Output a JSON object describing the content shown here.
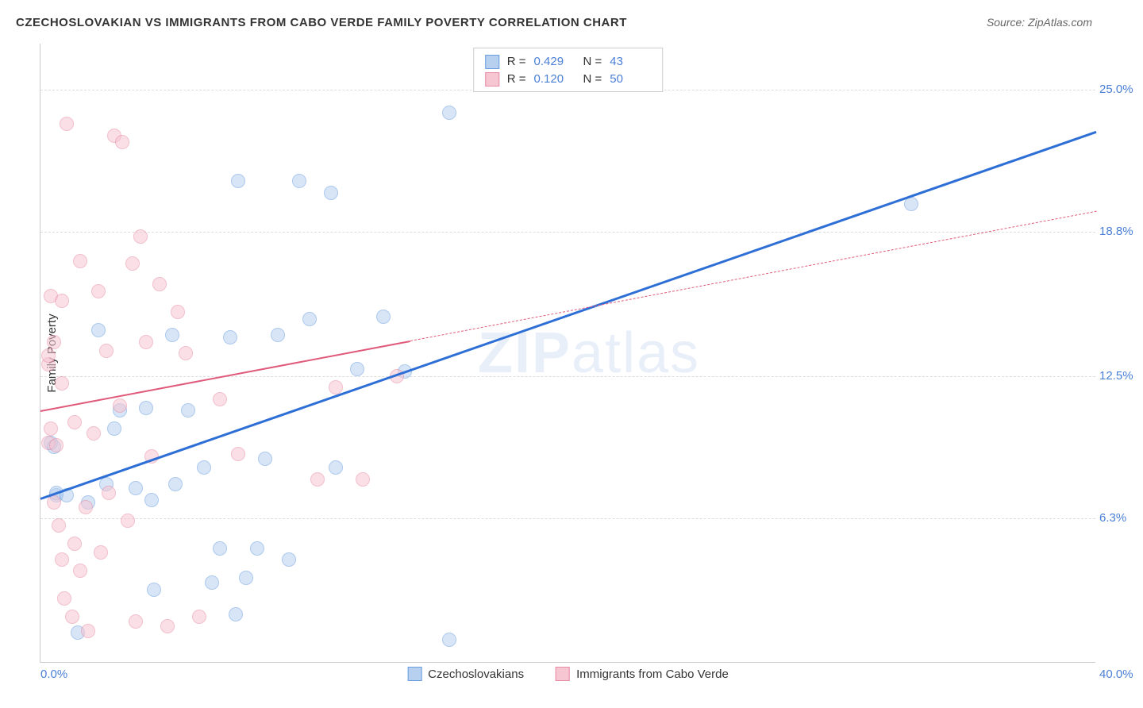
{
  "title": "CZECHOSLOVAKIAN VS IMMIGRANTS FROM CABO VERDE FAMILY POVERTY CORRELATION CHART",
  "source": "Source: ZipAtlas.com",
  "watermark": "ZIPatlas",
  "chart": {
    "type": "scatter",
    "ylabel": "Family Poverty",
    "xlim": [
      0,
      40
    ],
    "ylim": [
      0,
      27
    ],
    "x_ticks": [
      {
        "v": 0,
        "label": "0.0%"
      },
      {
        "v": 40,
        "label": "40.0%"
      }
    ],
    "y_ticks": [
      {
        "v": 6.3,
        "label": "6.3%"
      },
      {
        "v": 12.5,
        "label": "12.5%"
      },
      {
        "v": 18.8,
        "label": "18.8%"
      },
      {
        "v": 25.0,
        "label": "25.0%"
      }
    ],
    "background_color": "#ffffff",
    "grid_color": "#dddddd",
    "series": [
      {
        "name": "Czechoslovakians",
        "color_fill": "#b8d0f0",
        "color_stroke": "#6a9de0",
        "marker_radius": 9,
        "fill_opacity": 0.55,
        "R": "0.429",
        "N": "43",
        "trend": {
          "x1": 0,
          "y1": 7.2,
          "x2": 40,
          "y2": 23.2,
          "color": "#2e6fd6",
          "width": 2.5,
          "solid_until_x": 40
        },
        "points": [
          [
            0.4,
            9.6
          ],
          [
            0.5,
            9.4
          ],
          [
            0.6,
            7.3
          ],
          [
            0.6,
            7.4
          ],
          [
            1.0,
            7.3
          ],
          [
            1.4,
            1.3
          ],
          [
            1.8,
            7.0
          ],
          [
            2.2,
            14.5
          ],
          [
            2.5,
            7.8
          ],
          [
            2.8,
            10.2
          ],
          [
            3.0,
            11.0
          ],
          [
            3.6,
            7.6
          ],
          [
            4.0,
            11.1
          ],
          [
            4.2,
            7.1
          ],
          [
            4.3,
            3.2
          ],
          [
            5.0,
            14.3
          ],
          [
            5.1,
            7.8
          ],
          [
            5.6,
            11.0
          ],
          [
            6.2,
            8.5
          ],
          [
            6.5,
            3.5
          ],
          [
            6.8,
            5.0
          ],
          [
            7.2,
            14.2
          ],
          [
            7.4,
            2.1
          ],
          [
            7.5,
            21.0
          ],
          [
            7.8,
            3.7
          ],
          [
            8.2,
            5.0
          ],
          [
            8.5,
            8.9
          ],
          [
            9.0,
            14.3
          ],
          [
            9.4,
            4.5
          ],
          [
            9.8,
            21.0
          ],
          [
            10.2,
            15.0
          ],
          [
            11.0,
            20.5
          ],
          [
            11.2,
            8.5
          ],
          [
            12.0,
            12.8
          ],
          [
            13.0,
            15.1
          ],
          [
            13.8,
            12.7
          ],
          [
            15.5,
            24.0
          ],
          [
            15.5,
            1.0
          ],
          [
            33.0,
            20.0
          ]
        ]
      },
      {
        "name": "Immigrants from Cabo Verde",
        "color_fill": "#f6c6d2",
        "color_stroke": "#e88ba4",
        "marker_radius": 9,
        "fill_opacity": 0.55,
        "R": "0.120",
        "N": "50",
        "trend": {
          "x1": 0,
          "y1": 11.0,
          "x2": 40,
          "y2": 19.7,
          "color": "#e05a7a",
          "width": 2,
          "solid_until_x": 14
        },
        "points": [
          [
            0.3,
            13.0
          ],
          [
            0.3,
            13.4
          ],
          [
            0.3,
            9.6
          ],
          [
            0.4,
            16.0
          ],
          [
            0.4,
            10.2
          ],
          [
            0.5,
            7.0
          ],
          [
            0.5,
            14.0
          ],
          [
            0.6,
            9.5
          ],
          [
            0.7,
            6.0
          ],
          [
            0.8,
            12.2
          ],
          [
            0.8,
            15.8
          ],
          [
            0.8,
            4.5
          ],
          [
            0.9,
            2.8
          ],
          [
            1.0,
            23.5
          ],
          [
            1.2,
            2.0
          ],
          [
            1.3,
            10.5
          ],
          [
            1.3,
            5.2
          ],
          [
            1.5,
            4.0
          ],
          [
            1.5,
            17.5
          ],
          [
            1.7,
            6.8
          ],
          [
            1.8,
            1.4
          ],
          [
            2.0,
            10.0
          ],
          [
            2.2,
            16.2
          ],
          [
            2.3,
            4.8
          ],
          [
            2.5,
            13.6
          ],
          [
            2.6,
            7.4
          ],
          [
            2.8,
            23.0
          ],
          [
            3.0,
            11.2
          ],
          [
            3.1,
            22.7
          ],
          [
            3.3,
            6.2
          ],
          [
            3.5,
            17.4
          ],
          [
            3.6,
            1.8
          ],
          [
            3.8,
            18.6
          ],
          [
            4.0,
            14.0
          ],
          [
            4.2,
            9.0
          ],
          [
            4.5,
            16.5
          ],
          [
            4.8,
            1.6
          ],
          [
            5.2,
            15.3
          ],
          [
            5.5,
            13.5
          ],
          [
            6.0,
            2.0
          ],
          [
            6.8,
            11.5
          ],
          [
            7.5,
            9.1
          ],
          [
            10.5,
            8.0
          ],
          [
            11.2,
            12.0
          ],
          [
            12.2,
            8.0
          ],
          [
            13.5,
            12.5
          ]
        ]
      }
    ]
  },
  "legend_bottom": {
    "items": [
      {
        "swatch_fill": "#b8d0f0",
        "swatch_stroke": "#6a9de0",
        "label": "Czechoslovakians"
      },
      {
        "swatch_fill": "#f6c6d2",
        "swatch_stroke": "#e88ba4",
        "label": "Immigrants from Cabo Verde"
      }
    ]
  },
  "legend_top": {
    "rows": [
      {
        "swatch_fill": "#b8d0f0",
        "swatch_stroke": "#6a9de0",
        "r_label": "R =",
        "r_val": "0.429",
        "n_label": "N =",
        "n_val": "43"
      },
      {
        "swatch_fill": "#f6c6d2",
        "swatch_stroke": "#e88ba4",
        "r_label": "R =",
        "r_val": "0.120",
        "n_label": "N =",
        "n_val": "50"
      }
    ]
  }
}
